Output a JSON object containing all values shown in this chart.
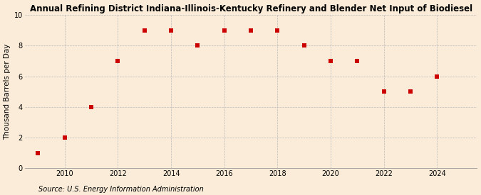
{
  "title": "Annual Refining District Indiana-Illinois-Kentucky Refinery and Blender Net Input of Biodiesel",
  "ylabel": "Thousand Barrels per Day",
  "source": "Source: U.S. Energy Information Administration",
  "background_color": "#faecd8",
  "x_values": [
    2009,
    2010,
    2011,
    2012,
    2013,
    2014,
    2015,
    2016,
    2017,
    2018,
    2019,
    2020,
    2021,
    2022,
    2023,
    2024
  ],
  "y_values": [
    1,
    2,
    4,
    7,
    9,
    9,
    8,
    9,
    9,
    9,
    8,
    7,
    7,
    5,
    5,
    6
  ],
  "marker_color": "#cc0000",
  "marker_size": 18,
  "xlim": [
    2008.5,
    2025.5
  ],
  "ylim": [
    0,
    10
  ],
  "xticks": [
    2010,
    2012,
    2014,
    2016,
    2018,
    2020,
    2022,
    2024
  ],
  "yticks": [
    0,
    2,
    4,
    6,
    8,
    10
  ],
  "grid_color": "#bbbbbb",
  "title_fontsize": 8.5,
  "axis_fontsize": 7.5,
  "tick_fontsize": 7,
  "source_fontsize": 7
}
